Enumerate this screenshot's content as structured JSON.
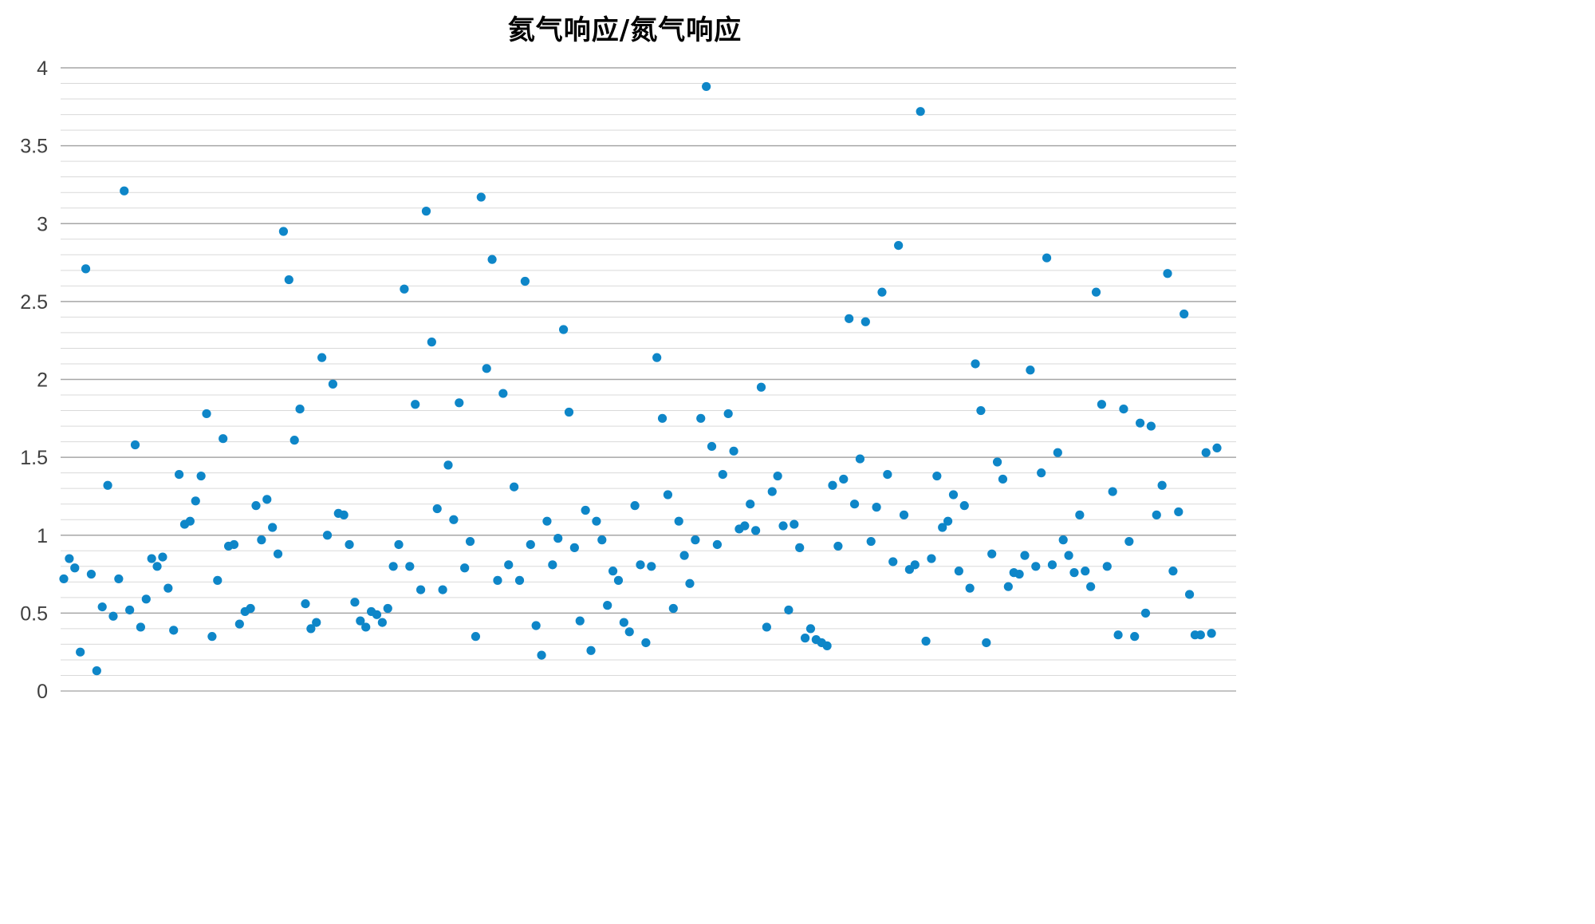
{
  "chart_data": {
    "type": "scatter",
    "title": "氦气响应/氮气响应",
    "xlabel": "",
    "ylabel": "",
    "ylim": [
      0,
      4
    ],
    "y_ticks": [
      "0",
      "0.5",
      "1",
      "1.5",
      "2",
      "2.5",
      "3",
      "3.5",
      "4"
    ],
    "grid": true,
    "legend": "none",
    "marker_color": "#0e86c8",
    "major_grid_color": "#a6a6a6",
    "minor_grid_color": "#d9d9d9",
    "series": [
      {
        "values": [
          0.72,
          0.85,
          0.79,
          0.25,
          2.71,
          0.75,
          0.13,
          0.54,
          1.32,
          0.48,
          0.72,
          3.21,
          0.52,
          1.58,
          0.41,
          0.59,
          0.85,
          0.8,
          0.86,
          0.66,
          0.39,
          1.39,
          1.07,
          1.09,
          1.22,
          1.38,
          1.78,
          0.35,
          0.71,
          1.62,
          0.93,
          0.94,
          0.43,
          0.51,
          0.53,
          1.19,
          0.97,
          1.23,
          1.05,
          0.88,
          2.95,
          2.64,
          1.61,
          1.81,
          0.56,
          0.4,
          0.44,
          2.14,
          1.0,
          1.97,
          1.14,
          1.13,
          0.94,
          0.57,
          0.45,
          0.41,
          0.51,
          0.49,
          0.44,
          0.53,
          0.8,
          0.94,
          2.58,
          0.8,
          1.84,
          0.65,
          3.08,
          2.24,
          1.17,
          0.65,
          1.45,
          1.1,
          1.85,
          0.79,
          0.96,
          0.35,
          3.17,
          2.07,
          2.77,
          0.71,
          1.91,
          0.81,
          1.31,
          0.71,
          2.63,
          0.94,
          0.42,
          0.23,
          1.09,
          0.81,
          0.98,
          2.32,
          1.79,
          0.92,
          0.45,
          1.16,
          0.26,
          1.09,
          0.97,
          0.55,
          0.77,
          0.71,
          0.44,
          0.38,
          1.19,
          0.81,
          0.31,
          0.8,
          2.14,
          1.75,
          1.26,
          0.53,
          1.09,
          0.87,
          0.69,
          0.97,
          1.75,
          3.88,
          1.57,
          0.94,
          1.39,
          1.78,
          1.54,
          1.04,
          1.06,
          1.2,
          1.03,
          1.95,
          0.41,
          1.28,
          1.38,
          1.06,
          0.52,
          1.07,
          0.92,
          0.34,
          0.4,
          0.33,
          0.31,
          0.29,
          1.32,
          0.93,
          1.36,
          2.39,
          1.2,
          1.49,
          2.37,
          0.96,
          1.18,
          2.56,
          1.39,
          0.83,
          2.86,
          1.13,
          0.78,
          0.81,
          3.72,
          0.32,
          0.85,
          1.38,
          1.05,
          1.09,
          1.26,
          0.77,
          1.19,
          0.66,
          2.1,
          1.8,
          0.31,
          0.88,
          1.47,
          1.36,
          0.67,
          0.76,
          0.75,
          0.87,
          2.06,
          0.8,
          1.4,
          2.78,
          0.81,
          1.53,
          0.97,
          0.87,
          0.76,
          1.13,
          0.77,
          0.67,
          2.56,
          1.84,
          0.8,
          1.28,
          0.36,
          1.81,
          0.96,
          0.35,
          1.72,
          0.5,
          1.7,
          1.13,
          1.32,
          2.68,
          0.77,
          1.15,
          2.42,
          0.62,
          0.36,
          0.36,
          1.53,
          0.37,
          1.56
        ]
      }
    ]
  }
}
